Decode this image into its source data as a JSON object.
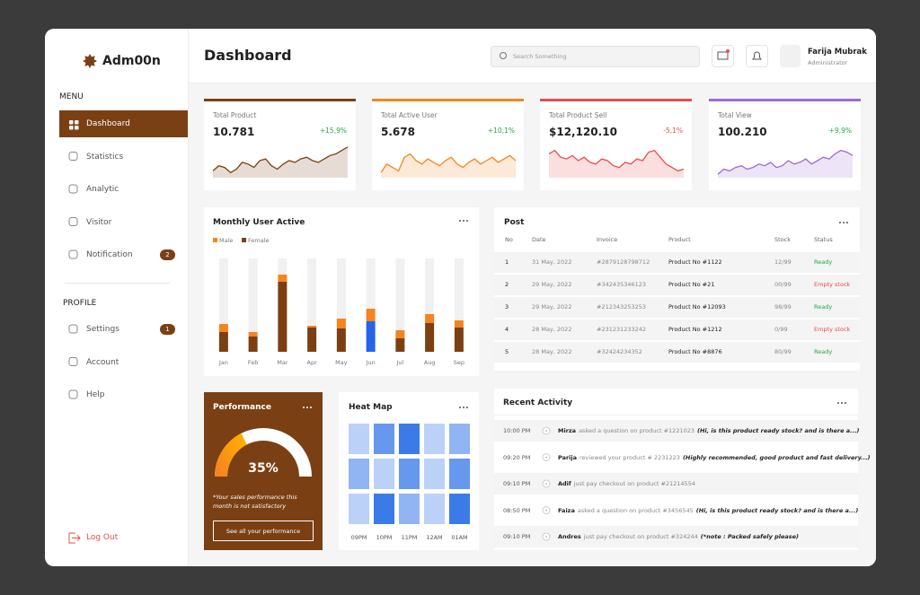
{
  "sidebar": {
    "brand": "Adm00n",
    "menu_title": "MENU",
    "menu": [
      {
        "label": "Dashboard"
      },
      {
        "label": "Statistics"
      },
      {
        "label": "Analytic"
      },
      {
        "label": "Visitor"
      },
      {
        "label": "Notification",
        "badge": "2"
      }
    ],
    "profile_title": "PROFILE",
    "profile": [
      {
        "label": "Settings",
        "badge": "1"
      },
      {
        "label": "Account"
      },
      {
        "label": "Help"
      }
    ],
    "logout": "Log Out"
  },
  "header": {
    "title": "Dashboard",
    "search_placeholder": "Search Something",
    "user_name": "Farija Mubrak",
    "user_role": "Administrator"
  },
  "stats": {
    "trend_range": [
      0,
      100
    ],
    "cards": [
      {
        "label": "Total Product",
        "value": "10.781",
        "change": "+15,9%",
        "change_color": "#22a845",
        "color": "#7b3f14",
        "trend": [
          20,
          35,
          30,
          15,
          25,
          45,
          40,
          30,
          50,
          55,
          35,
          25,
          40,
          50,
          45,
          55,
          60,
          50,
          45,
          55,
          65,
          70,
          80,
          90
        ]
      },
      {
        "label": "Total Active User",
        "value": "5.678",
        "change": "+10,1%",
        "change_color": "#22a845",
        "color": "#f5841f",
        "trend": [
          15,
          40,
          30,
          20,
          60,
          70,
          50,
          40,
          55,
          45,
          35,
          50,
          60,
          40,
          30,
          45,
          55,
          40,
          50,
          60,
          45,
          55,
          65,
          50
        ]
      },
      {
        "label": "Total Product Sell",
        "value": "$12,120.10",
        "change": "-5,1%",
        "change_color": "#e84d4d",
        "color": "#e84d4d",
        "trend": [
          70,
          80,
          60,
          55,
          65,
          50,
          60,
          45,
          40,
          55,
          50,
          35,
          30,
          45,
          40,
          55,
          50,
          75,
          80,
          60,
          40,
          30,
          20,
          25
        ]
      },
      {
        "label": "Total View",
        "value": "100.210",
        "change": "+9,9%",
        "change_color": "#22a845",
        "color": "#9b6bd6",
        "trend": [
          10,
          25,
          20,
          30,
          35,
          25,
          30,
          40,
          35,
          45,
          30,
          35,
          50,
          40,
          45,
          55,
          40,
          50,
          60,
          55,
          70,
          80,
          75,
          65
        ]
      }
    ]
  },
  "chart_data": {
    "type": "bar",
    "title": "Monthly User Active",
    "categories": [
      "Jan",
      "Feb",
      "Mar",
      "Apr",
      "May",
      "Jun",
      "Jul",
      "Aug",
      "Sep"
    ],
    "series": [
      {
        "name": "Female",
        "color": "#7b3f14",
        "values": [
          22,
          17,
          78,
          27,
          26,
          34,
          15,
          32,
          27
        ]
      },
      {
        "name": "Male",
        "color": "#f5841f",
        "values": [
          9,
          5,
          8,
          2,
          11,
          14,
          9,
          10,
          8
        ]
      }
    ],
    "highlight": {
      "index": 5,
      "color": "#2563eb"
    },
    "ylim": [
      0,
      104
    ]
  },
  "post": {
    "title": "Post",
    "columns": [
      "No",
      "Date",
      "Invoice",
      "Product",
      "Stock",
      "Status"
    ],
    "rows": [
      [
        "1",
        "31 May, 2022",
        "#2879128798712",
        "Product No #1122",
        "12/99",
        "Ready"
      ],
      [
        "2",
        "29 May, 2022",
        "#342435346123",
        "Product No #21",
        "00/99",
        "Empty stock"
      ],
      [
        "3",
        "29 May, 2022",
        "#212343253253",
        "Product No #12093",
        "98/99",
        "Ready"
      ],
      [
        "4",
        "28 May, 2022",
        "#231231233242",
        "Product No #1212",
        "0/99",
        "Empty stock"
      ],
      [
        "5",
        "28 May, 2022",
        "#32424234352",
        "Product No #8876",
        "80/99",
        "Ready"
      ]
    ],
    "status_colors": [
      "#22a845",
      "#e84d4d",
      "#22a845",
      "#e84d4d",
      "#22a845"
    ]
  },
  "performance": {
    "title": "Performance",
    "value": 35,
    "label": "35%",
    "range": [
      0,
      100
    ],
    "note": "*Your sales performance this month is not satisfactory",
    "button": "See all your performance"
  },
  "heatmap": {
    "title": "Heat Map",
    "columns": [
      "09PM",
      "10PM",
      "11PM",
      "12AM",
      "01AM"
    ],
    "range": [
      0,
      4
    ],
    "values": [
      [
        1,
        3,
        4,
        1,
        2
      ],
      [
        2,
        1,
        3,
        1,
        3
      ],
      [
        1,
        4,
        2,
        1,
        4
      ]
    ]
  },
  "activity": {
    "title": "Recent Activity",
    "items": [
      {
        "time": "10:00 PM",
        "name": "Mirza",
        "action": "asked a question on product #1221023",
        "quote": "(Hi, is this product ready stock? and is there a...)"
      },
      {
        "time": "09:20 PM",
        "name": "Parija",
        "action": "reviewed your product # 2231223",
        "quote": "(Highly recommended, good product and fast delivery...)"
      },
      {
        "time": "09:10 PM",
        "name": "Adif",
        "action": "just pay checkout on product #21214554"
      },
      {
        "time": "08:50 PM",
        "name": "Faiza",
        "action": "asked a question on product #3456545",
        "quote": "(Hi, is this product ready stock? and is there a...)"
      },
      {
        "time": "09:10 PM",
        "name": "Andres",
        "action": "just pay checkout on product #324244",
        "quote": "(*note : Packed safely please)"
      }
    ]
  }
}
